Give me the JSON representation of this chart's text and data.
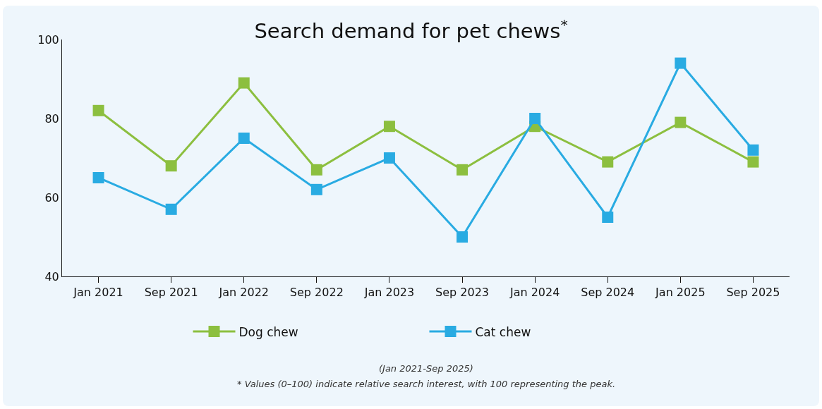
{
  "chart_data": {
    "type": "line",
    "title": "Search demand for pet chews$^{*}$",
    "categories": [
      "Jan 2021",
      "Sep 2021",
      "Jan 2022",
      "Sep 2022",
      "Jan 2023",
      "Sep 2023",
      "Jan 2024",
      "Sep 2024",
      "Jan 2025",
      "Sep 2025"
    ],
    "series": [
      {
        "name": "Dog chew",
        "color": "#8cbf3f",
        "values": [
          82,
          68,
          89,
          67,
          78,
          67,
          78,
          69,
          79,
          69
        ]
      },
      {
        "name": "Cat chew",
        "color": "#29abe2",
        "values": [
          65,
          57,
          75,
          62,
          70,
          50,
          80,
          55,
          94,
          72
        ]
      }
    ],
    "ylim": [
      40,
      100
    ],
    "yticks": [
      40,
      60,
      80,
      100
    ],
    "grid": false,
    "legend": "bottom",
    "marker": "square",
    "line_style": "solid",
    "annotations": [
      "(Jan 2021-Sep 2025)",
      "* Values (0–100) indicate relative search interest, with 100 representing the peak."
    ]
  }
}
